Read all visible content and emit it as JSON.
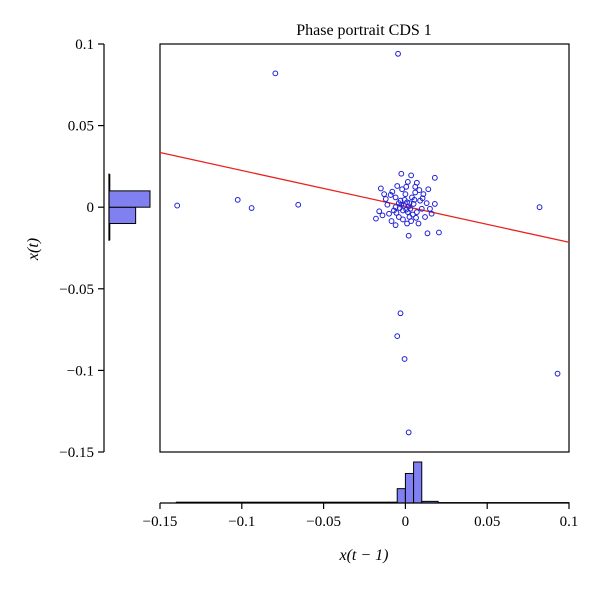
{
  "chart_data": {
    "type": "scatter",
    "title": "Phase portrait CDS 1",
    "xlabel": "x(t − 1)",
    "ylabel": "x(t)",
    "xlim": [
      -0.15,
      0.1
    ],
    "ylim": [
      -0.15,
      0.1
    ],
    "x_ticks": [
      -0.15,
      -0.1,
      -0.05,
      0,
      0.05,
      0.1
    ],
    "x_tick_labels": [
      "−0.15",
      "−0.1",
      "−0.05",
      "0",
      "0.05",
      "0.1"
    ],
    "y_ticks": [
      -0.15,
      -0.1,
      -0.05,
      0,
      0.05,
      0.1
    ],
    "y_tick_labels": [
      "−0.15",
      "−0.1",
      "−0.05",
      "0",
      "0.05",
      "0.1"
    ],
    "grid": false,
    "colors": {
      "points": "#1f1fd6",
      "regression": "#e8231f",
      "histogram_fill": "#8080f0"
    },
    "scatter_points": [
      {
        "x": -0.0045,
        "y": 0.094
      },
      {
        "x": -0.0795,
        "y": 0.082
      },
      {
        "x": 0.018,
        "y": 0.018
      },
      {
        "x": -0.1395,
        "y": 0.001
      },
      {
        "x": -0.1025,
        "y": 0.0045
      },
      {
        "x": -0.094,
        "y": -0.0005
      },
      {
        "x": -0.0655,
        "y": 0.0015
      },
      {
        "x": 0.082,
        "y": 0.0
      },
      {
        "x": -0.003,
        "y": -0.065
      },
      {
        "x": -0.005,
        "y": -0.079
      },
      {
        "x": -0.0005,
        "y": -0.093
      },
      {
        "x": 0.093,
        "y": -0.102
      },
      {
        "x": 0.002,
        "y": -0.138
      },
      {
        "x": -0.0025,
        "y": 0.0205
      },
      {
        "x": 0.0035,
        "y": 0.0195
      },
      {
        "x": -0.015,
        "y": 0.0115
      },
      {
        "x": 0.018,
        "y": 0.002
      },
      {
        "x": 0.016,
        "y": -0.004
      },
      {
        "x": 0.0205,
        "y": -0.0155
      },
      {
        "x": 0.0135,
        "y": -0.016
      },
      {
        "x": 0.002,
        "y": -0.0175
      },
      {
        "x": -0.006,
        "y": -0.011
      },
      {
        "x": -0.018,
        "y": -0.007
      },
      {
        "x": -0.016,
        "y": -0.0025
      },
      {
        "x": -0.012,
        "y": 0.005
      },
      {
        "x": -0.008,
        "y": 0.0095
      },
      {
        "x": 0.006,
        "y": 0.0125
      },
      {
        "x": 0.011,
        "y": 0.008
      },
      {
        "x": 0.013,
        "y": 0.0025
      },
      {
        "x": 0.012,
        "y": -0.006
      },
      {
        "x": 0.008,
        "y": -0.01
      },
      {
        "x": 0.001,
        "y": -0.01
      },
      {
        "x": -0.01,
        "y": -0.004
      },
      {
        "x": -0.011,
        "y": 0.0015
      },
      {
        "x": 0.007,
        "y": 0.015
      },
      {
        "x": 0.0015,
        "y": 0.0155
      },
      {
        "x": -0.006,
        "y": 0.006
      },
      {
        "x": -0.004,
        "y": -0.006
      },
      {
        "x": -0.001,
        "y": 0.001
      },
      {
        "x": 0.001,
        "y": 0.003
      },
      {
        "x": 0.003,
        "y": -0.001
      },
      {
        "x": 0.005,
        "y": 0.002
      },
      {
        "x": 0.004,
        "y": 0.006
      },
      {
        "x": 0.0,
        "y": 0.008
      },
      {
        "x": -0.003,
        "y": 0.004
      },
      {
        "x": -0.006,
        "y": 0.0
      },
      {
        "x": -0.007,
        "y": -0.002
      },
      {
        "x": 0.0025,
        "y": -0.006
      },
      {
        "x": 0.007,
        "y": -0.003
      },
      {
        "x": 0.009,
        "y": 0.004
      },
      {
        "x": 0.01,
        "y": -0.001
      },
      {
        "x": 0.006,
        "y": 0.009
      },
      {
        "x": -0.002,
        "y": 0.011
      },
      {
        "x": -0.005,
        "y": 0.013
      },
      {
        "x": 0.0015,
        "y": -0.003
      },
      {
        "x": -0.0015,
        "y": -0.002
      },
      {
        "x": 0.002,
        "y": 0.0005
      },
      {
        "x": -0.0005,
        "y": 0.0045
      },
      {
        "x": 0.0045,
        "y": -0.0045
      },
      {
        "x": -0.004,
        "y": 0.0025
      },
      {
        "x": 0.0055,
        "y": 0.0045
      },
      {
        "x": -0.0055,
        "y": -0.0035
      },
      {
        "x": 0.0085,
        "y": 0.0105
      },
      {
        "x": -0.009,
        "y": 0.0075
      },
      {
        "x": 0.0105,
        "y": 0.0055
      },
      {
        "x": -0.0085,
        "y": -0.0085
      },
      {
        "x": 0.0035,
        "y": -0.0085
      },
      {
        "x": -0.0015,
        "y": -0.0075
      },
      {
        "x": 0.014,
        "y": 0.011
      },
      {
        "x": -0.013,
        "y": 0.008
      },
      {
        "x": 0.015,
        "y": -0.001
      },
      {
        "x": -0.014,
        "y": -0.005
      },
      {
        "x": 0.0005,
        "y": 0.0125
      },
      {
        "x": 0.0065,
        "y": -0.0065
      },
      {
        "x": -0.0025,
        "y": 0.0015
      },
      {
        "x": 0.0005,
        "y": -0.0015
      },
      {
        "x": 0.0025,
        "y": 0.0025
      },
      {
        "x": -0.0035,
        "y": -0.0005
      }
    ],
    "regression_line": {
      "x": [
        -0.15,
        0.1
      ],
      "y": [
        0.0335,
        -0.0215
      ]
    },
    "marginal_histogram_x": {
      "bin_edges": [
        -0.14,
        -0.01,
        -0.005,
        0.0,
        0.005,
        0.01,
        0.02,
        0.1
      ],
      "heights": [
        0.02,
        0.02,
        0.35,
        0.72,
        1.0,
        0.04,
        0.01
      ]
    },
    "marginal_histogram_y": {
      "bin_edges": [
        -0.02,
        -0.01,
        0.0,
        0.01,
        0.02
      ],
      "widths": [
        0.02,
        0.65,
        1.0,
        0.02
      ]
    }
  }
}
